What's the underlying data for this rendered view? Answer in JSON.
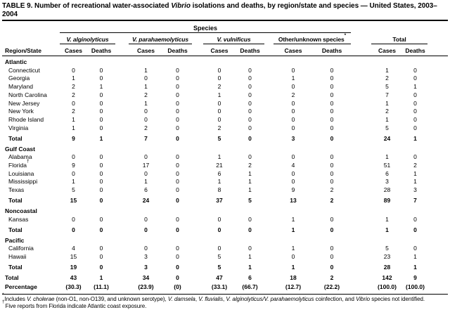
{
  "title": {
    "parts": [
      {
        "t": "TABLE 9. Number of recreational water-associated ",
        "i": false
      },
      {
        "t": "Vibrio",
        "i": true
      },
      {
        "t": " isolations and deaths, by region/state and species — United States, 2003–2004",
        "i": false
      }
    ]
  },
  "table": {
    "species_header": "Species",
    "region_col_header": "Region/State",
    "groups": [
      {
        "name": "V. alginolyticus",
        "italic": true,
        "sup": ""
      },
      {
        "name": "V. parahaemolyticus",
        "italic": true,
        "sup": ""
      },
      {
        "name": "V. vulnificus",
        "italic": true,
        "sup": ""
      },
      {
        "name": "Other/unknown species",
        "italic": false,
        "sup": "*"
      },
      {
        "name": "Total",
        "italic": false,
        "sup": ""
      }
    ],
    "subheaders": {
      "cases": "Cases",
      "deaths": "Deaths"
    },
    "rows": [
      {
        "type": "section",
        "label": "Atlantic"
      },
      {
        "type": "state",
        "label": "Connecticut",
        "values": [
          "0",
          "0",
          "1",
          "0",
          "0",
          "0",
          "0",
          "0",
          "1",
          "0"
        ]
      },
      {
        "type": "state",
        "label": "Georgia",
        "values": [
          "1",
          "0",
          "0",
          "0",
          "0",
          "0",
          "1",
          "0",
          "2",
          "0"
        ]
      },
      {
        "type": "state",
        "label": "Maryland",
        "values": [
          "2",
          "1",
          "1",
          "0",
          "2",
          "0",
          "0",
          "0",
          "5",
          "1"
        ]
      },
      {
        "type": "state",
        "label": "North Carolina",
        "values": [
          "2",
          "0",
          "2",
          "0",
          "1",
          "0",
          "2",
          "0",
          "7",
          "0"
        ]
      },
      {
        "type": "state",
        "label": "New Jersey",
        "values": [
          "0",
          "0",
          "1",
          "0",
          "0",
          "0",
          "0",
          "0",
          "1",
          "0"
        ]
      },
      {
        "type": "state",
        "label": "New York",
        "values": [
          "2",
          "0",
          "0",
          "0",
          "0",
          "0",
          "0",
          "0",
          "2",
          "0"
        ]
      },
      {
        "type": "state",
        "label": "Rhode Island",
        "values": [
          "1",
          "0",
          "0",
          "0",
          "0",
          "0",
          "0",
          "0",
          "1",
          "0"
        ]
      },
      {
        "type": "state",
        "label": "Virginia",
        "values": [
          "1",
          "0",
          "2",
          "0",
          "2",
          "0",
          "0",
          "0",
          "5",
          "0"
        ]
      },
      {
        "type": "section-total",
        "label": "Total",
        "values": [
          "9",
          "1",
          "7",
          "0",
          "5",
          "0",
          "3",
          "0",
          "24",
          "1"
        ]
      },
      {
        "type": "section",
        "label": "Gulf Coast"
      },
      {
        "type": "state",
        "label": "Alabama",
        "values": [
          "0",
          "0",
          "0",
          "0",
          "1",
          "0",
          "0",
          "0",
          "1",
          "0"
        ]
      },
      {
        "type": "state",
        "label": "Florida",
        "sup": "†",
        "values": [
          "9",
          "0",
          "17",
          "0",
          "21",
          "2",
          "4",
          "0",
          "51",
          "2"
        ]
      },
      {
        "type": "state",
        "label": "Louisiana",
        "values": [
          "0",
          "0",
          "0",
          "0",
          "6",
          "1",
          "0",
          "0",
          "6",
          "1"
        ]
      },
      {
        "type": "state",
        "label": "Mississippi",
        "values": [
          "1",
          "0",
          "1",
          "0",
          "1",
          "1",
          "0",
          "0",
          "3",
          "1"
        ]
      },
      {
        "type": "state",
        "label": "Texas",
        "values": [
          "5",
          "0",
          "6",
          "0",
          "8",
          "1",
          "9",
          "2",
          "28",
          "3"
        ]
      },
      {
        "type": "section-total",
        "label": "Total",
        "values": [
          "15",
          "0",
          "24",
          "0",
          "37",
          "5",
          "13",
          "2",
          "89",
          "7"
        ]
      },
      {
        "type": "section",
        "label": "Noncoastal"
      },
      {
        "type": "state",
        "label": "Kansas",
        "values": [
          "0",
          "0",
          "0",
          "0",
          "0",
          "0",
          "1",
          "0",
          "1",
          "0"
        ]
      },
      {
        "type": "section-total",
        "label": "Total",
        "values": [
          "0",
          "0",
          "0",
          "0",
          "0",
          "0",
          "1",
          "0",
          "1",
          "0"
        ]
      },
      {
        "type": "section",
        "label": "Pacific"
      },
      {
        "type": "state",
        "label": "California",
        "values": [
          "4",
          "0",
          "0",
          "0",
          "0",
          "0",
          "1",
          "0",
          "5",
          "0"
        ]
      },
      {
        "type": "state",
        "label": "Hawaii",
        "values": [
          "15",
          "0",
          "3",
          "0",
          "5",
          "1",
          "0",
          "0",
          "23",
          "1"
        ]
      },
      {
        "type": "section-total",
        "label": "Total",
        "values": [
          "19",
          "0",
          "3",
          "0",
          "5",
          "1",
          "1",
          "0",
          "28",
          "1"
        ]
      },
      {
        "type": "grand-total",
        "label": "Total",
        "values": [
          "43",
          "1",
          "34",
          "0",
          "47",
          "6",
          "18",
          "2",
          "142",
          "9"
        ]
      },
      {
        "type": "percentage",
        "label": "Percentage",
        "values": [
          "(30.3)",
          "(11.1)",
          "(23.9)",
          "(0)",
          "(33.1)",
          "(66.7)",
          "(12.7)",
          "(22.2)",
          "(100.0)",
          "(100.0)"
        ]
      }
    ]
  },
  "footnotes": [
    {
      "marker": "*",
      "segments": [
        {
          "t": "Includes ",
          "i": false
        },
        {
          "t": "V. cholerae",
          "i": true
        },
        {
          "t": " (non-O1, non-O139, and unknown serotype), ",
          "i": false
        },
        {
          "t": "V. damsela",
          "i": true
        },
        {
          "t": ", ",
          "i": false
        },
        {
          "t": "V. fluvialis",
          "i": true
        },
        {
          "t": ", ",
          "i": false
        },
        {
          "t": "V. alginolyticus/V. parahaemolyticus",
          "i": true
        },
        {
          "t": " coinfection, and ",
          "i": false
        },
        {
          "t": "Vibrio",
          "i": true
        },
        {
          "t": " species not identified.",
          "i": false
        }
      ]
    },
    {
      "marker": "†",
      "segments": [
        {
          "t": "Five reports from Florida indicate Atlantic coast exposure.",
          "i": false
        }
      ]
    }
  ]
}
